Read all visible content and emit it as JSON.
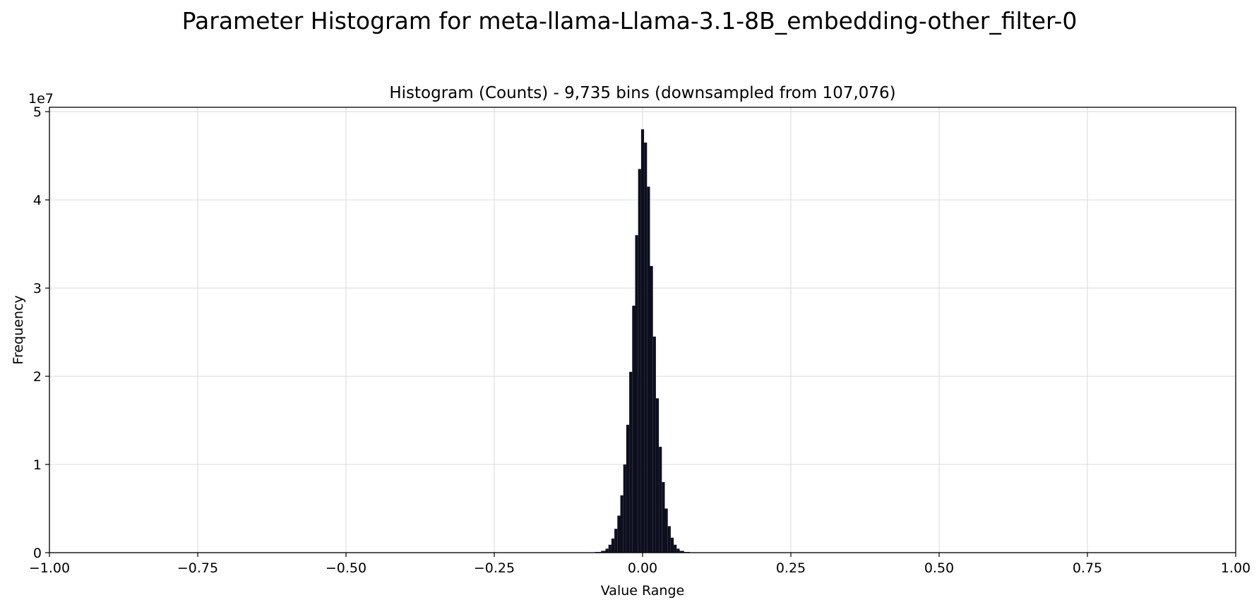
{
  "figure": {
    "suptitle": "Parameter Histogram for meta-llama-Llama-3.1-8B_embedding-other_filter-0"
  },
  "chart_data": {
    "type": "bar",
    "title": "Histogram (Counts) - 9,735 bins (downsampled from 107,076)",
    "xlabel": "Value Range",
    "ylabel": "Frequency",
    "y_offset_label": "1e7",
    "xlim": [
      -1.0,
      1.0
    ],
    "ylim": [
      0,
      50500000
    ],
    "xticks": [
      -1.0,
      -0.75,
      -0.5,
      -0.25,
      0.0,
      0.25,
      0.5,
      0.75,
      1.0
    ],
    "xtick_labels": [
      "−1.00",
      "−0.75",
      "−0.50",
      "−0.25",
      "0.00",
      "0.25",
      "0.50",
      "0.75",
      "1.00"
    ],
    "yticks": [
      0,
      10000000,
      20000000,
      30000000,
      40000000,
      50000000
    ],
    "ytick_labels": [
      "0",
      "1",
      "2",
      "3",
      "4",
      "5"
    ],
    "grid": true,
    "bar_color": "#0d0f1f",
    "bins": {
      "x": [
        -0.085,
        -0.075,
        -0.065,
        -0.06,
        -0.055,
        -0.05,
        -0.045,
        -0.04,
        -0.035,
        -0.03,
        -0.025,
        -0.02,
        -0.015,
        -0.01,
        -0.005,
        0.0,
        0.005,
        0.01,
        0.015,
        0.02,
        0.025,
        0.03,
        0.035,
        0.04,
        0.045,
        0.05,
        0.055,
        0.06,
        0.065,
        0.075,
        0.085
      ],
      "values": [
        20000,
        80000,
        200000,
        450000,
        900000,
        1600000,
        2700000,
        4200000,
        6500000,
        10000000,
        14500000,
        20500000,
        28000000,
        36000000,
        43500000,
        48000000,
        46500000,
        41500000,
        32500000,
        24500000,
        17500000,
        12000000,
        8000000,
        5000000,
        3000000,
        1700000,
        900000,
        450000,
        200000,
        80000,
        20000
      ]
    }
  }
}
